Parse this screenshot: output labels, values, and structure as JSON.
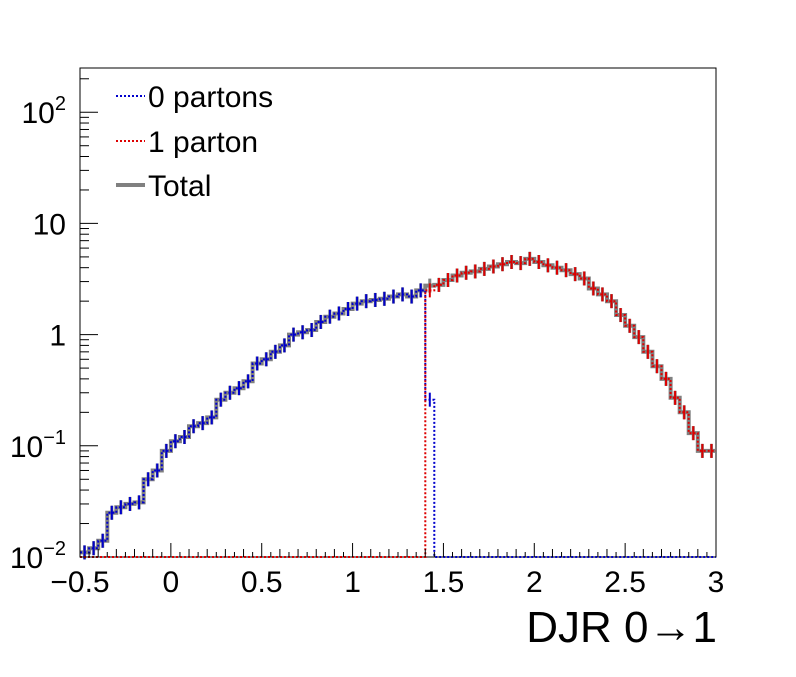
{
  "chart_data": {
    "type": "line",
    "xlabel": "DJR 0→1",
    "ylabel": "",
    "xlim": [
      -0.5,
      3.0
    ],
    "ylim": [
      0.01,
      250
    ],
    "y_scale": "log",
    "grid": false,
    "legend_position": "top-left",
    "x_ticks": [
      {
        "value": -0.5,
        "label": "−0.5"
      },
      {
        "value": 0,
        "label": "0"
      },
      {
        "value": 0.5,
        "label": "0.5"
      },
      {
        "value": 1,
        "label": "1"
      },
      {
        "value": 1.5,
        "label": "1.5"
      },
      {
        "value": 2,
        "label": "2"
      },
      {
        "value": 2.5,
        "label": "2.5"
      },
      {
        "value": 3,
        "label": "3"
      }
    ],
    "y_ticks": [
      {
        "value": 0.01,
        "base": "10",
        "exp": "−2"
      },
      {
        "value": 0.1,
        "base": "10",
        "exp": "−1"
      },
      {
        "value": 1,
        "base": "1",
        "exp": ""
      },
      {
        "value": 10,
        "base": "10",
        "exp": ""
      },
      {
        "value": 100,
        "base": "10",
        "exp": "2"
      }
    ],
    "bin_width": 0.05,
    "bin_low_edges": [
      -0.5,
      -0.45,
      -0.4,
      -0.35,
      -0.3,
      -0.25,
      -0.2,
      -0.15,
      -0.1,
      -0.05,
      0.0,
      0.05,
      0.1,
      0.15,
      0.2,
      0.25,
      0.3,
      0.35,
      0.4,
      0.45,
      0.5,
      0.55,
      0.6,
      0.65,
      0.7,
      0.75,
      0.8,
      0.85,
      0.9,
      0.95,
      1.0,
      1.05,
      1.1,
      1.15,
      1.2,
      1.25,
      1.3,
      1.35,
      1.4,
      1.45,
      1.5,
      1.55,
      1.6,
      1.65,
      1.7,
      1.75,
      1.8,
      1.85,
      1.9,
      1.95,
      2.0,
      2.05,
      2.1,
      2.15,
      2.2,
      2.25,
      2.3,
      2.35,
      2.4,
      2.45,
      2.5,
      2.55,
      2.6,
      2.65,
      2.7,
      2.75,
      2.8,
      2.85,
      2.9,
      2.95
    ],
    "series": [
      {
        "name": "0 partons",
        "color": "#0000cc",
        "style": "dotted",
        "values": [
          0.011,
          0.012,
          0.014,
          0.025,
          0.028,
          0.03,
          0.031,
          0.05,
          0.06,
          0.09,
          0.11,
          0.12,
          0.15,
          0.16,
          0.18,
          0.26,
          0.3,
          0.33,
          0.38,
          0.55,
          0.6,
          0.7,
          0.8,
          1.0,
          1.05,
          1.1,
          1.3,
          1.45,
          1.55,
          1.7,
          1.9,
          2.0,
          2.05,
          2.1,
          2.2,
          2.3,
          2.2,
          2.5,
          0.26,
          0.01,
          0.01,
          0.01,
          0.01,
          0.01,
          0.01,
          0.01,
          0.01,
          0.01,
          0.01,
          0.01,
          0.01,
          0.01,
          0.01,
          0.01,
          0.01,
          0.01,
          0.01,
          0.01,
          0.01,
          0.01,
          0.01,
          0.01,
          0.01,
          0.01,
          0.01,
          0.01,
          0.01,
          0.01,
          0.01,
          0.01
        ]
      },
      {
        "name": "1 parton",
        "color": "#dd0000",
        "style": "dotted",
        "values": [
          0.01,
          0.01,
          0.01,
          0.01,
          0.01,
          0.01,
          0.01,
          0.01,
          0.01,
          0.01,
          0.01,
          0.01,
          0.01,
          0.01,
          0.01,
          0.01,
          0.01,
          0.01,
          0.01,
          0.01,
          0.01,
          0.01,
          0.01,
          0.01,
          0.01,
          0.01,
          0.01,
          0.01,
          0.01,
          0.01,
          0.01,
          0.01,
          0.01,
          0.01,
          0.01,
          0.01,
          0.01,
          0.01,
          2.5,
          2.8,
          3.1,
          3.4,
          3.6,
          3.7,
          3.9,
          4.1,
          4.3,
          4.5,
          4.4,
          4.8,
          4.5,
          4.2,
          4.0,
          3.8,
          3.5,
          3.2,
          2.6,
          2.3,
          2.0,
          1.5,
          1.2,
          0.95,
          0.7,
          0.52,
          0.4,
          0.27,
          0.2,
          0.13,
          0.09,
          0.09
        ]
      },
      {
        "name": "Total",
        "color": "#808080",
        "style": "solid",
        "values": [
          0.011,
          0.012,
          0.014,
          0.025,
          0.028,
          0.03,
          0.031,
          0.05,
          0.06,
          0.09,
          0.11,
          0.12,
          0.15,
          0.16,
          0.18,
          0.26,
          0.3,
          0.33,
          0.38,
          0.55,
          0.6,
          0.7,
          0.8,
          1.0,
          1.05,
          1.1,
          1.3,
          1.45,
          1.55,
          1.7,
          1.9,
          2.0,
          2.05,
          2.1,
          2.2,
          2.3,
          2.2,
          2.5,
          2.76,
          2.8,
          3.1,
          3.4,
          3.6,
          3.7,
          3.9,
          4.1,
          4.3,
          4.5,
          4.4,
          4.8,
          4.5,
          4.2,
          4.0,
          3.8,
          3.5,
          3.2,
          2.6,
          2.3,
          2.0,
          1.5,
          1.2,
          0.95,
          0.7,
          0.52,
          0.4,
          0.27,
          0.2,
          0.13,
          0.09,
          0.09
        ]
      }
    ]
  }
}
